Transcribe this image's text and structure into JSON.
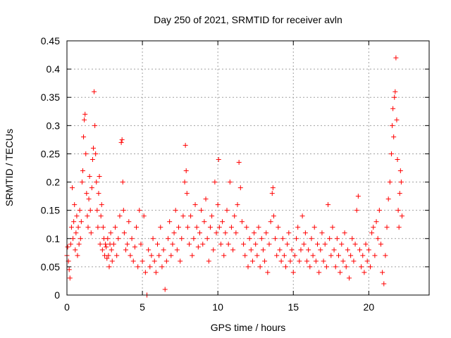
{
  "chart_data": {
    "type": "scatter",
    "title": "Day 250 of 2021, SRMTID for receiver avln",
    "xlabel": "GPS time / hours",
    "ylabel": "SRMTID / TECUs",
    "xlim": [
      0,
      24
    ],
    "ylim": [
      0,
      0.45
    ],
    "xticks": [
      0,
      5,
      10,
      15,
      20
    ],
    "xtick_labels": [
      "0",
      "5",
      "10",
      "15",
      "20"
    ],
    "yticks": [
      0,
      0.05,
      0.1,
      0.15,
      0.2,
      0.25,
      0.3,
      0.35,
      0.4,
      0.45
    ],
    "ytick_labels": [
      "0",
      "0.05",
      "0.1",
      "0.15",
      "0.2",
      "0.25",
      "0.3",
      "0.35",
      "0.4",
      "0.45"
    ],
    "grid": true,
    "marker": "plus",
    "color": "#ff0000",
    "series": [
      {
        "points": [
          [
            0.0,
            0.07
          ],
          [
            0.05,
            0.085
          ],
          [
            0.1,
            0.06
          ],
          [
            0.15,
            0.045
          ],
          [
            0.2,
            0.03
          ],
          [
            0.25,
            0.09
          ],
          [
            0.3,
            0.12
          ],
          [
            0.35,
            0.19
          ],
          [
            0.4,
            0.1
          ],
          [
            0.45,
            0.13
          ],
          [
            0.5,
            0.16
          ],
          [
            0.55,
            0.08
          ],
          [
            0.6,
            0.11
          ],
          [
            0.65,
            0.14
          ],
          [
            0.7,
            0.07
          ],
          [
            0.75,
            0.12
          ],
          [
            0.8,
            0.09
          ],
          [
            0.85,
            0.15
          ],
          [
            0.9,
            0.1
          ],
          [
            0.95,
            0.13
          ],
          [
            1.0,
            0.2
          ],
          [
            1.05,
            0.22
          ],
          [
            1.1,
            0.28
          ],
          [
            1.15,
            0.31
          ],
          [
            1.2,
            0.32
          ],
          [
            1.25,
            0.25
          ],
          [
            1.3,
            0.18
          ],
          [
            1.35,
            0.14
          ],
          [
            1.4,
            0.12
          ],
          [
            1.45,
            0.17
          ],
          [
            1.5,
            0.21
          ],
          [
            1.55,
            0.15
          ],
          [
            1.6,
            0.11
          ],
          [
            1.65,
            0.19
          ],
          [
            1.7,
            0.24
          ],
          [
            1.75,
            0.26
          ],
          [
            1.8,
            0.36
          ],
          [
            1.85,
            0.3
          ],
          [
            1.9,
            0.25
          ],
          [
            1.95,
            0.2
          ],
          [
            2.0,
            0.15
          ],
          [
            2.05,
            0.12
          ],
          [
            2.1,
            0.18
          ],
          [
            2.15,
            0.21
          ],
          [
            2.2,
            0.09
          ],
          [
            2.25,
            0.14
          ],
          [
            2.3,
            0.16
          ],
          [
            2.35,
            0.08
          ],
          [
            2.4,
            0.12
          ],
          [
            2.45,
            0.1
          ],
          [
            2.5,
            0.07
          ],
          [
            2.55,
            0.09
          ],
          [
            2.6,
            0.085
          ],
          [
            2.65,
            0.065
          ],
          [
            2.7,
            0.1
          ],
          [
            2.75,
            0.07
          ],
          [
            2.8,
            0.05
          ],
          [
            2.85,
            0.09
          ],
          [
            2.9,
            0.11
          ],
          [
            2.95,
            0.08
          ],
          [
            3.0,
            0.06
          ],
          [
            3.1,
            0.09
          ],
          [
            3.2,
            0.12
          ],
          [
            3.3,
            0.07
          ],
          [
            3.4,
            0.1
          ],
          [
            3.5,
            0.14
          ],
          [
            3.6,
            0.27
          ],
          [
            3.65,
            0.275
          ],
          [
            3.7,
            0.2
          ],
          [
            3.75,
            0.15
          ],
          [
            3.8,
            0.11
          ],
          [
            3.9,
            0.08
          ],
          [
            4.0,
            0.09
          ],
          [
            4.1,
            0.13
          ],
          [
            4.2,
            0.07
          ],
          [
            4.3,
            0.1
          ],
          [
            4.4,
            0.06
          ],
          [
            4.5,
            0.085
          ],
          [
            4.6,
            0.12
          ],
          [
            4.7,
            0.05
          ],
          [
            4.8,
            0.15
          ],
          [
            4.9,
            0.09
          ],
          [
            5.0,
            0.06
          ],
          [
            5.1,
            0.14
          ],
          [
            5.2,
            0.04
          ],
          [
            5.3,
            0.0
          ],
          [
            5.4,
            0.08
          ],
          [
            5.5,
            0.05
          ],
          [
            5.6,
            0.07
          ],
          [
            5.7,
            0.1
          ],
          [
            5.8,
            0.06
          ],
          [
            5.9,
            0.04
          ],
          [
            6.0,
            0.09
          ],
          [
            6.1,
            0.07
          ],
          [
            6.2,
            0.12
          ],
          [
            6.3,
            0.05
          ],
          [
            6.4,
            0.08
          ],
          [
            6.5,
            0.01
          ],
          [
            6.6,
            0.06
          ],
          [
            6.7,
            0.1
          ],
          [
            6.8,
            0.13
          ],
          [
            6.9,
            0.07
          ],
          [
            7.0,
            0.09
          ],
          [
            7.1,
            0.11
          ],
          [
            7.2,
            0.15
          ],
          [
            7.3,
            0.08
          ],
          [
            7.4,
            0.12
          ],
          [
            7.5,
            0.06
          ],
          [
            7.6,
            0.1
          ],
          [
            7.7,
            0.14
          ],
          [
            7.8,
            0.2
          ],
          [
            7.85,
            0.265
          ],
          [
            7.9,
            0.22
          ],
          [
            7.95,
            0.18
          ],
          [
            8.0,
            0.12
          ],
          [
            8.1,
            0.09
          ],
          [
            8.2,
            0.14
          ],
          [
            8.3,
            0.07
          ],
          [
            8.4,
            0.1
          ],
          [
            8.5,
            0.16
          ],
          [
            8.6,
            0.12
          ],
          [
            8.7,
            0.085
          ],
          [
            8.8,
            0.11
          ],
          [
            8.9,
            0.15
          ],
          [
            9.0,
            0.09
          ],
          [
            9.1,
            0.13
          ],
          [
            9.2,
            0.17
          ],
          [
            9.3,
            0.1
          ],
          [
            9.4,
            0.06
          ],
          [
            9.5,
            0.12
          ],
          [
            9.6,
            0.14
          ],
          [
            9.7,
            0.08
          ],
          [
            9.8,
            0.2
          ],
          [
            9.9,
            0.11
          ],
          [
            10.0,
            0.16
          ],
          [
            10.05,
            0.24
          ],
          [
            10.1,
            0.12
          ],
          [
            10.2,
            0.09
          ],
          [
            10.3,
            0.13
          ],
          [
            10.4,
            0.07
          ],
          [
            10.5,
            0.11
          ],
          [
            10.6,
            0.15
          ],
          [
            10.7,
            0.09
          ],
          [
            10.8,
            0.2
          ],
          [
            10.9,
            0.12
          ],
          [
            11.0,
            0.08
          ],
          [
            11.1,
            0.14
          ],
          [
            11.2,
            0.11
          ],
          [
            11.3,
            0.16
          ],
          [
            11.4,
            0.235
          ],
          [
            11.5,
            0.19
          ],
          [
            11.6,
            0.13
          ],
          [
            11.7,
            0.09
          ],
          [
            11.8,
            0.07
          ],
          [
            11.9,
            0.12
          ],
          [
            12.0,
            0.05
          ],
          [
            12.1,
            0.1
          ],
          [
            12.2,
            0.08
          ],
          [
            12.3,
            0.06
          ],
          [
            12.4,
            0.11
          ],
          [
            12.5,
            0.09
          ],
          [
            12.6,
            0.07
          ],
          [
            12.7,
            0.12
          ],
          [
            12.8,
            0.05
          ],
          [
            12.9,
            0.1
          ],
          [
            13.0,
            0.08
          ],
          [
            13.1,
            0.06
          ],
          [
            13.2,
            0.11
          ],
          [
            13.3,
            0.04
          ],
          [
            13.4,
            0.09
          ],
          [
            13.5,
            0.13
          ],
          [
            13.6,
            0.18
          ],
          [
            13.65,
            0.19
          ],
          [
            13.7,
            0.14
          ],
          [
            13.8,
            0.1
          ],
          [
            13.9,
            0.07
          ],
          [
            14.0,
            0.12
          ],
          [
            14.1,
            0.08
          ],
          [
            14.2,
            0.06
          ],
          [
            14.3,
            0.1
          ],
          [
            14.4,
            0.07
          ],
          [
            14.5,
            0.05
          ],
          [
            14.6,
            0.09
          ],
          [
            14.7,
            0.11
          ],
          [
            14.8,
            0.06
          ],
          [
            14.9,
            0.08
          ],
          [
            15.0,
            0.04
          ],
          [
            15.1,
            0.07
          ],
          [
            15.2,
            0.1
          ],
          [
            15.3,
            0.12
          ],
          [
            15.4,
            0.06
          ],
          [
            15.5,
            0.08
          ],
          [
            15.6,
            0.14
          ],
          [
            15.7,
            0.09
          ],
          [
            15.8,
            0.11
          ],
          [
            15.9,
            0.06
          ],
          [
            16.0,
            0.08
          ],
          [
            16.1,
            0.05
          ],
          [
            16.2,
            0.1
          ],
          [
            16.3,
            0.07
          ],
          [
            16.4,
            0.12
          ],
          [
            16.5,
            0.06
          ],
          [
            16.6,
            0.09
          ],
          [
            16.7,
            0.04
          ],
          [
            16.8,
            0.08
          ],
          [
            16.9,
            0.11
          ],
          [
            17.0,
            0.06
          ],
          [
            17.1,
            0.09
          ],
          [
            17.2,
            0.05
          ],
          [
            17.3,
            0.16
          ],
          [
            17.4,
            0.1
          ],
          [
            17.5,
            0.07
          ],
          [
            17.6,
            0.12
          ],
          [
            17.7,
            0.08
          ],
          [
            17.8,
            0.05
          ],
          [
            17.9,
            0.1
          ],
          [
            18.0,
            0.07
          ],
          [
            18.1,
            0.04
          ],
          [
            18.2,
            0.09
          ],
          [
            18.3,
            0.06
          ],
          [
            18.4,
            0.11
          ],
          [
            18.5,
            0.05
          ],
          [
            18.6,
            0.08
          ],
          [
            18.7,
            0.03
          ],
          [
            18.8,
            0.07
          ],
          [
            18.9,
            0.1
          ],
          [
            19.0,
            0.06
          ],
          [
            19.1,
            0.09
          ],
          [
            19.2,
            0.15
          ],
          [
            19.3,
            0.175
          ],
          [
            19.4,
            0.08
          ],
          [
            19.5,
            0.05
          ],
          [
            19.6,
            0.07
          ],
          [
            19.7,
            0.04
          ],
          [
            19.8,
            0.09
          ],
          [
            19.9,
            0.06
          ],
          [
            20.0,
            0.08
          ],
          [
            20.1,
            0.05
          ],
          [
            20.2,
            0.11
          ],
          [
            20.3,
            0.12
          ],
          [
            20.4,
            0.07
          ],
          [
            20.5,
            0.13
          ],
          [
            20.6,
            0.1
          ],
          [
            20.7,
            0.15
          ],
          [
            20.8,
            0.09
          ],
          [
            20.9,
            0.04
          ],
          [
            21.0,
            0.02
          ],
          [
            21.1,
            0.07
          ],
          [
            21.2,
            0.12
          ],
          [
            21.3,
            0.17
          ],
          [
            21.4,
            0.2
          ],
          [
            21.5,
            0.25
          ],
          [
            21.55,
            0.3
          ],
          [
            21.6,
            0.33
          ],
          [
            21.65,
            0.28
          ],
          [
            21.7,
            0.35
          ],
          [
            21.75,
            0.36
          ],
          [
            21.8,
            0.42
          ],
          [
            21.85,
            0.31
          ],
          [
            21.9,
            0.24
          ],
          [
            21.95,
            0.15
          ],
          [
            22.0,
            0.12
          ],
          [
            22.05,
            0.18
          ],
          [
            22.1,
            0.22
          ],
          [
            22.15,
            0.2
          ],
          [
            22.2,
            0.14
          ]
        ]
      }
    ]
  }
}
